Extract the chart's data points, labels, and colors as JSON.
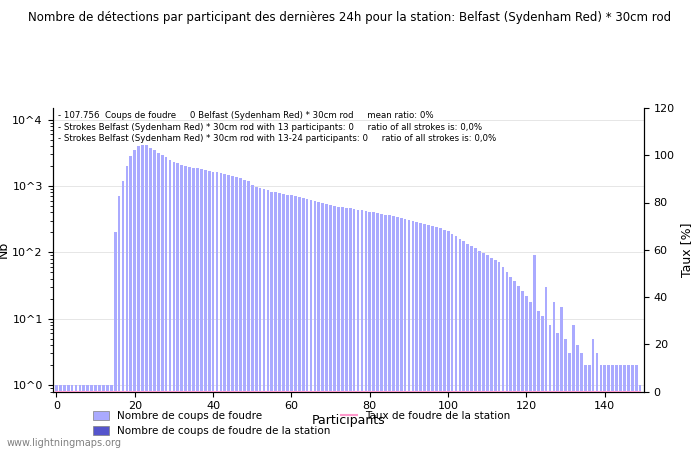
{
  "title": "Nombre de détections par participant des dernières 24h pour la station: Belfast (Sydenham Red) * 30cm rod",
  "annotation_lines": [
    "107.756  Coups de foudre     0 Belfast (Sydenham Red) * 30cm rod     mean ratio: 0%",
    "Strokes Belfast (Sydenham Red) * 30cm rod with 13 participants: 0     ratio of all strokes is: 0,0%",
    "Strokes Belfast (Sydenham Red) * 30cm rod with 13-24 participants: 0     ratio of all strokes is: 0,0%"
  ],
  "xlabel": "Participants",
  "ylabel_left": "Nb",
  "ylabel_right": "Taux [%]",
  "bar_color_light": "#aaaaff",
  "bar_color_dark": "#5555cc",
  "line_color": "#ff99cc",
  "watermark": "www.lightningmaps.org",
  "legend_entries": [
    "Nombre de coups de foudre",
    "Nombre de coups de foudre de la station",
    "Taux de foudre de la station"
  ],
  "ylim_right": [
    0,
    120
  ],
  "yticks_right": [
    0,
    20,
    40,
    60,
    80,
    100,
    120
  ],
  "bar_values": [
    1,
    1,
    1,
    1,
    1,
    1,
    1,
    1,
    1,
    1,
    1,
    1,
    1,
    1,
    1,
    200,
    700,
    1200,
    2000,
    2800,
    3500,
    4000,
    4200,
    4100,
    3800,
    3500,
    3200,
    2900,
    2700,
    2500,
    2300,
    2200,
    2100,
    2000,
    1950,
    1900,
    1850,
    1800,
    1750,
    1700,
    1650,
    1600,
    1550,
    1500,
    1450,
    1400,
    1350,
    1300,
    1250,
    1200,
    1050,
    980,
    940,
    900,
    860,
    820,
    800,
    780,
    760,
    740,
    720,
    700,
    680,
    660,
    640,
    620,
    600,
    580,
    560,
    540,
    520,
    500,
    490,
    480,
    470,
    460,
    450,
    440,
    430,
    420,
    410,
    400,
    390,
    380,
    370,
    360,
    350,
    340,
    330,
    320,
    310,
    300,
    290,
    280,
    270,
    260,
    250,
    240,
    230,
    220,
    210,
    190,
    175,
    160,
    148,
    135,
    125,
    115,
    105,
    97,
    90,
    83,
    77,
    71,
    60,
    50,
    43,
    37,
    31,
    26,
    22,
    18,
    90,
    13,
    11,
    30,
    8,
    18,
    6,
    15,
    5,
    3,
    8,
    4,
    3,
    2,
    2,
    5,
    3,
    2,
    2,
    2,
    2,
    2,
    2,
    2,
    2,
    2,
    2,
    1
  ]
}
